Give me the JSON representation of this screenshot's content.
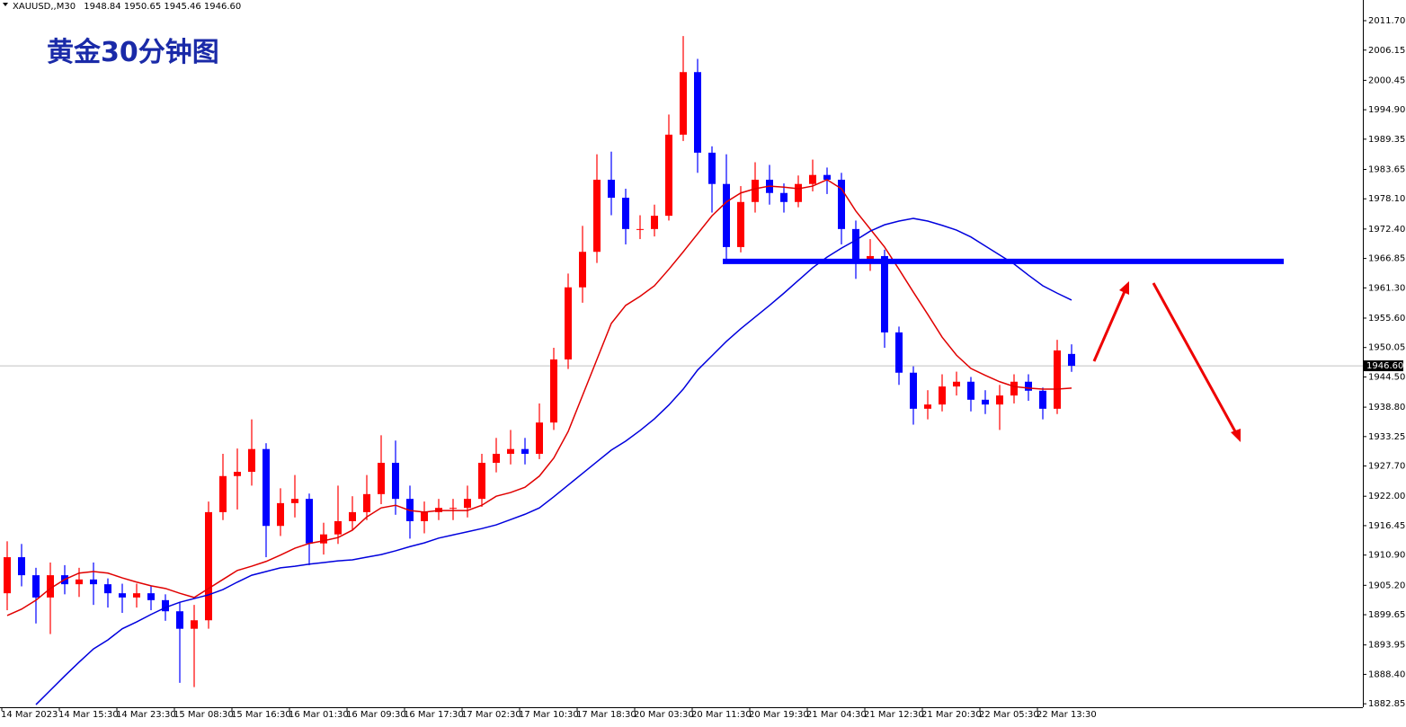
{
  "chart_data": {
    "type": "candlestick",
    "symbol": "XAUUSD,,M30",
    "title": "黄金30分钟图",
    "categories": [
      "14 Mar 2023",
      null,
      null,
      null,
      "14 Mar 15:30",
      null,
      null,
      null,
      "14 Mar 23:30",
      null,
      null,
      null,
      "15 Mar 08:30",
      null,
      null,
      null,
      "15 Mar 16:30",
      null,
      null,
      null,
      "16 Mar 01:30",
      null,
      null,
      null,
      "16 Mar 09:30",
      null,
      null,
      null,
      "16 Mar 17:30",
      null,
      null,
      null,
      "17 Mar 02:30",
      null,
      null,
      null,
      "17 Mar 10:30",
      null,
      null,
      null,
      "17 Mar 18:30",
      null,
      null,
      null,
      "20 Mar 03:30",
      null,
      null,
      null,
      "20 Mar 11:30",
      null,
      null,
      null,
      "20 Mar 19:30",
      null,
      null,
      null,
      "21 Mar 04:30",
      null,
      null,
      null,
      "21 Mar 12:30",
      null,
      null,
      null,
      "21 Mar 20:30",
      null,
      null,
      null,
      "22 Mar 05:30",
      null,
      null,
      null,
      "22 Mar 13:30",
      null,
      null
    ],
    "open": [
      1903.7,
      1910.5,
      1907.1,
      1902.9,
      1907.1,
      1905.4,
      1906.3,
      1905.4,
      1903.7,
      1902.9,
      1903.7,
      1902.4,
      1900.3,
      1897.0,
      1898.6,
      1919.0,
      1925.8,
      1926.6,
      1930.9,
      1916.4,
      1920.7,
      1921.5,
      1913.1,
      1914.8,
      1917.3,
      1919.0,
      1922.4,
      1928.3,
      1921.5,
      1917.3,
      1919.0,
      1919.8,
      1919.8,
      1921.5,
      1928.3,
      1930.0,
      1930.9,
      1930.0,
      1935.9,
      1947.8,
      1961.4,
      1968.1,
      1981.7,
      1978.3,
      1972.4,
      1972.4,
      1974.9,
      1990.2,
      2002.0,
      1986.8,
      1980.9,
      1969.0,
      1977.5,
      1981.7,
      1979.2,
      1977.5,
      1980.9,
      1982.6,
      1981.7,
      1972.4,
      1966.5,
      1967.3,
      1952.9,
      1945.3,
      1938.5,
      1939.3,
      1942.7,
      1943.6,
      1940.2,
      1939.3,
      1941.0,
      1943.6,
      1941.9,
      1938.5,
      1948.84
    ],
    "high": [
      1913.5,
      1913.0,
      1908.5,
      1909.5,
      1909.0,
      1908.5,
      1909.5,
      1906.5,
      1905.5,
      1905.5,
      1905.0,
      1903.5,
      1902.0,
      1901.5,
      1921.0,
      1930.0,
      1931.0,
      1936.5,
      1932.0,
      1923.5,
      1926.0,
      1922.5,
      1917.0,
      1924.0,
      1922.0,
      1926.0,
      1933.5,
      1932.5,
      1924.0,
      1921.0,
      1921.5,
      1921.5,
      1924.0,
      1930.0,
      1933.0,
      1934.5,
      1933.0,
      1939.5,
      1950.0,
      1964.0,
      1973.0,
      1986.5,
      1987.0,
      1980.0,
      1975.0,
      1977.0,
      1994.0,
      2008.8,
      2004.5,
      1988.0,
      1986.5,
      1980.5,
      1985.0,
      1984.5,
      1981.0,
      1982.5,
      1985.5,
      1984.0,
      1983.0,
      1974.0,
      1970.5,
      1968.5,
      1954.0,
      1946.5,
      1942.0,
      1945.0,
      1945.5,
      1944.5,
      1942.0,
      1943.0,
      1945.0,
      1945.0,
      1942.5,
      1951.5,
      1950.65
    ],
    "low": [
      1900.5,
      1905.0,
      1898.0,
      1896.0,
      1903.5,
      1903.0,
      1901.5,
      1901.0,
      1900.0,
      1901.0,
      1900.5,
      1898.5,
      1886.8,
      1886.0,
      1897.0,
      1917.5,
      1919.5,
      1924.0,
      1910.5,
      1914.5,
      1918.0,
      1909.0,
      1911.0,
      1913.0,
      1915.5,
      1917.5,
      1920.5,
      1918.5,
      1914.0,
      1915.0,
      1917.5,
      1917.5,
      1918.0,
      1920.0,
      1926.5,
      1928.0,
      1928.0,
      1929.0,
      1934.5,
      1946.0,
      1958.5,
      1966.0,
      1975.0,
      1969.5,
      1970.5,
      1971.0,
      1974.0,
      1989.0,
      1983.0,
      1975.5,
      1966.5,
      1968.0,
      1975.5,
      1977.0,
      1975.5,
      1976.5,
      1979.5,
      1979.0,
      1969.5,
      1963.0,
      1964.5,
      1950.0,
      1943.0,
      1935.5,
      1936.5,
      1938.0,
      1941.0,
      1938.0,
      1937.5,
      1934.5,
      1939.5,
      1940.0,
      1936.5,
      1937.5,
      1945.46
    ],
    "close": [
      1910.5,
      1907.1,
      1902.9,
      1907.1,
      1905.4,
      1906.3,
      1905.4,
      1903.7,
      1902.9,
      1903.7,
      1902.4,
      1900.3,
      1897.0,
      1898.6,
      1919.0,
      1925.8,
      1926.6,
      1930.9,
      1916.4,
      1920.7,
      1921.5,
      1913.1,
      1914.8,
      1917.3,
      1919.0,
      1922.4,
      1928.3,
      1921.5,
      1917.3,
      1919.0,
      1919.8,
      1919.8,
      1921.5,
      1928.3,
      1930.0,
      1930.9,
      1930.0,
      1935.9,
      1947.8,
      1961.4,
      1968.1,
      1981.7,
      1978.3,
      1972.4,
      1972.4,
      1974.9,
      1990.2,
      2002.0,
      1986.8,
      1980.9,
      1969.0,
      1977.5,
      1981.7,
      1979.2,
      1977.5,
      1980.9,
      1982.6,
      1981.7,
      1972.4,
      1966.5,
      1967.3,
      1952.9,
      1945.3,
      1938.5,
      1939.3,
      1942.7,
      1943.6,
      1940.2,
      1939.3,
      1941.0,
      1943.6,
      1941.9,
      1938.5,
      1949.5,
      1946.6
    ],
    "up_color": "#ff0000",
    "down_color": "#0000ff",
    "series": [
      {
        "color": "#e00000",
        "values": [
          1899.5,
          1900.7,
          1902.4,
          1904.6,
          1906.3,
          1907.5,
          1907.8,
          1907.5,
          1906.6,
          1905.8,
          1905.1,
          1904.6,
          1903.7,
          1902.9,
          1904.6,
          1906.3,
          1908.0,
          1908.8,
          1909.7,
          1910.9,
          1912.2,
          1913.1,
          1913.6,
          1914.2,
          1915.6,
          1918.1,
          1919.8,
          1920.3,
          1919.3,
          1919.0,
          1919.3,
          1919.3,
          1919.3,
          1920.3,
          1922.0,
          1922.7,
          1923.7,
          1925.8,
          1929.2,
          1934.2,
          1941.0,
          1947.8,
          1954.6,
          1958.0,
          1959.7,
          1961.7,
          1964.8,
          1968.1,
          1971.5,
          1974.9,
          1977.5,
          1979.2,
          1980.0,
          1980.5,
          1980.3,
          1980.0,
          1980.5,
          1981.7,
          1980.0,
          1975.8,
          1972.4,
          1969.0,
          1964.8,
          1960.5,
          1956.3,
          1952.0,
          1948.6,
          1946.1,
          1944.8,
          1943.6,
          1942.7,
          1942.4,
          1942.2,
          1942.2,
          1942.4
        ]
      },
      {
        "color": "#0000dd",
        "values": [
          null,
          null,
          1882.7,
          1885.4,
          1888.1,
          1890.7,
          1893.2,
          1894.9,
          1897.0,
          1898.3,
          1899.7,
          1901.0,
          1902.0,
          1902.7,
          1903.4,
          1904.4,
          1905.8,
          1907.1,
          1907.8,
          1908.5,
          1908.8,
          1909.2,
          1909.5,
          1909.8,
          1910.0,
          1910.5,
          1911.0,
          1911.7,
          1912.5,
          1913.2,
          1914.1,
          1914.7,
          1915.3,
          1915.9,
          1916.6,
          1917.6,
          1918.6,
          1919.8,
          1921.9,
          1924.1,
          1926.3,
          1928.5,
          1930.7,
          1932.4,
          1934.4,
          1936.6,
          1939.2,
          1942.2,
          1945.8,
          1948.5,
          1951.2,
          1953.6,
          1955.8,
          1958.0,
          1960.3,
          1962.7,
          1965.1,
          1967.1,
          1968.8,
          1970.3,
          1972.0,
          1973.2,
          1973.9,
          1974.4,
          1973.9,
          1973.1,
          1972.2,
          1970.9,
          1969.2,
          1967.5,
          1965.8,
          1963.7,
          1961.7,
          1960.3,
          1959.0
        ]
      }
    ],
    "level": 1966.3,
    "level_color": "#0000ff",
    "last_price": {
      "value": 1946.6,
      "label": "1946.60"
    },
    "ylim": [
      1882.2,
      2015.6
    ],
    "yticks": [
      {
        "value": 2011.7,
        "label": "2011.70"
      },
      2006.15,
      2000.45,
      {
        "value": 1994.9,
        "label": "1994.90"
      },
      1989.35,
      1983.65,
      {
        "value": 1978.1,
        "label": "1978.10"
      },
      {
        "value": 1972.4,
        "label": "1972.40"
      },
      1966.85,
      {
        "value": 1961.3,
        "label": "1961.30"
      },
      {
        "value": 1955.6,
        "label": "1955.60"
      },
      1950.05,
      {
        "value": 1944.5,
        "label": "1944.50"
      },
      {
        "value": 1938.8,
        "label": "1938.80"
      },
      1933.25,
      {
        "value": 1927.7,
        "label": "1927.70"
      },
      {
        "value": 1922,
        "label": "1922.00"
      },
      1916.45,
      {
        "value": 1910.9,
        "label": "1910.90"
      },
      {
        "value": 1905.2,
        "label": "1905.20"
      },
      1899.65,
      1893.95,
      {
        "value": 1888.4,
        "label": "1888.40"
      },
      1882.85
    ]
  }
}
